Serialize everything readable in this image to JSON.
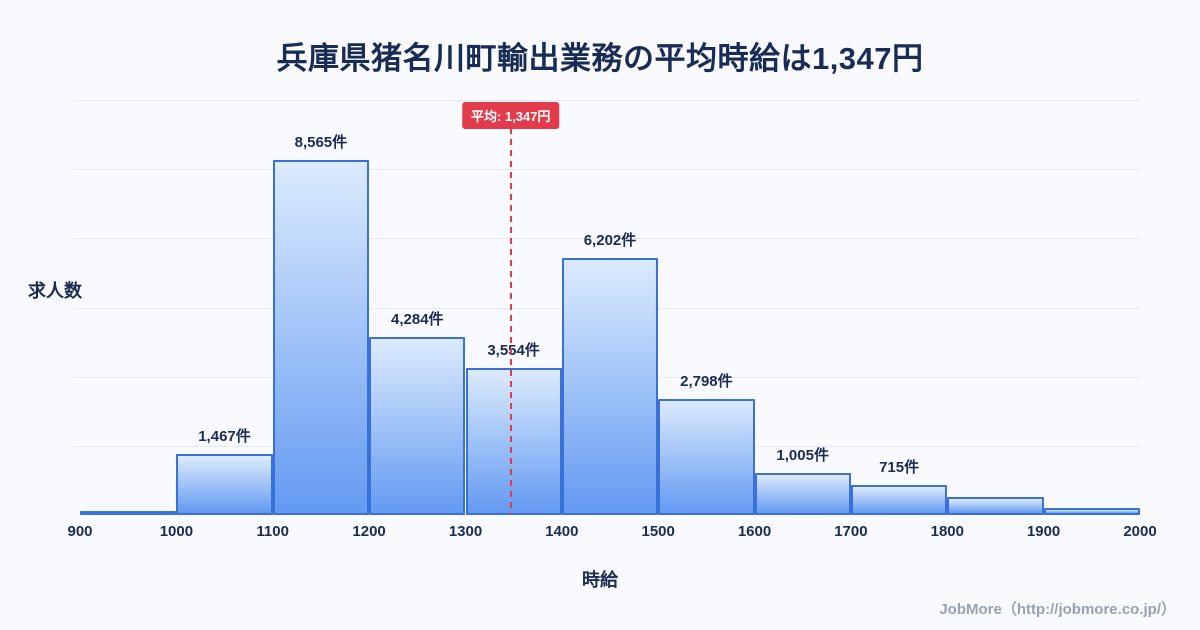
{
  "page": {
    "footer": "JobMore（http://jobmore.co.jp/）"
  },
  "chart_data": {
    "type": "bar",
    "title": "兵庫県猪名川町輸出業務の平均時給は1,347円",
    "xlabel": "時給",
    "ylabel": "求人数",
    "x_domain": [
      900,
      2000
    ],
    "x_ticks": [
      "900",
      "1000",
      "1100",
      "1200",
      "1300",
      "1400",
      "1500",
      "1600",
      "1700",
      "1800",
      "1900",
      "2000"
    ],
    "ylim": [
      0,
      10000
    ],
    "grid": true,
    "legend": "none",
    "bins": [
      {
        "x0": 900,
        "x1": 1000,
        "count": 100,
        "label": ""
      },
      {
        "x0": 1000,
        "x1": 1100,
        "count": 1467,
        "label": "1,467件"
      },
      {
        "x0": 1100,
        "x1": 1200,
        "count": 8565,
        "label": "8,565件"
      },
      {
        "x0": 1200,
        "x1": 1300,
        "count": 4284,
        "label": "4,284件"
      },
      {
        "x0": 1300,
        "x1": 1400,
        "count": 3554,
        "label": "3,554件"
      },
      {
        "x0": 1400,
        "x1": 1500,
        "count": 6202,
        "label": "6,202件"
      },
      {
        "x0": 1500,
        "x1": 1600,
        "count": 2798,
        "label": "2,798件"
      },
      {
        "x0": 1600,
        "x1": 1700,
        "count": 1005,
        "label": "1,005件"
      },
      {
        "x0": 1700,
        "x1": 1800,
        "count": 715,
        "label": "715件"
      },
      {
        "x0": 1800,
        "x1": 1900,
        "count": 430,
        "label": ""
      },
      {
        "x0": 1900,
        "x1": 2000,
        "count": 160,
        "label": ""
      }
    ],
    "mean_line": {
      "value": 1347,
      "label": "平均: 1,347円"
    },
    "colors": {
      "background": "#f8fafd",
      "title": "#182c56",
      "text": "#1b2b52",
      "bar_fill_top": "#dcebfd",
      "bar_fill_bottom": "#639af1",
      "bar_border": "#3a70d9",
      "grid": "#e4e9f2",
      "axis": "#bac6d6",
      "mean": "#e23b4c",
      "footer": "#97a1b3"
    }
  }
}
